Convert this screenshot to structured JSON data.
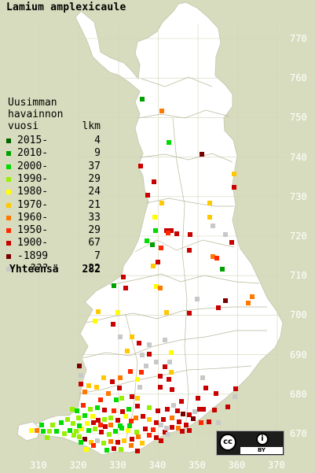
{
  "title": "Lamium amplexicaule",
  "legend": {
    "heading": [
      "Uusimman",
      "havainnon"
    ],
    "col_year": "vuosi",
    "col_count": "lkm",
    "rows": [
      {
        "label": "2015-",
        "count": "4",
        "color": "#006400"
      },
      {
        "label": "2010-",
        "count": "9",
        "color": "#00a000"
      },
      {
        "label": "2000-",
        "count": "37",
        "color": "#00dc00"
      },
      {
        "label": "1990-",
        "count": "29",
        "color": "#96f000"
      },
      {
        "label": "1980-",
        "count": "24",
        "color": "#ffff00"
      },
      {
        "label": "1970-",
        "count": "21",
        "color": "#ffc800"
      },
      {
        "label": "1960-",
        "count": "33",
        "color": "#ff7800"
      },
      {
        "label": "1950-",
        "count": "29",
        "color": "#ff2800"
      },
      {
        "label": "1900-",
        "count": "67",
        "color": "#c80000"
      },
      {
        "label": "-1899",
        "count": "7",
        "color": "#780000"
      },
      {
        "label": "???",
        "count": "22",
        "color": "#c8c8c8"
      }
    ],
    "total_label": "Yhteensä",
    "total_count": "282"
  },
  "grid": {
    "y_labels": [
      "770",
      "760",
      "750",
      "740",
      "730",
      "720",
      "710",
      "700",
      "690",
      "680",
      "670"
    ],
    "x_labels": [
      "310",
      "320",
      "330",
      "340",
      "350",
      "360",
      "370"
    ]
  },
  "license": {
    "cc": "cc",
    "by_icon": "i",
    "by_label": "BY"
  },
  "colors": {
    "land": "#ffffff",
    "sea": "#d8dcbe",
    "grid": "#d0d0b0",
    "border": "#b8b89c"
  }
}
